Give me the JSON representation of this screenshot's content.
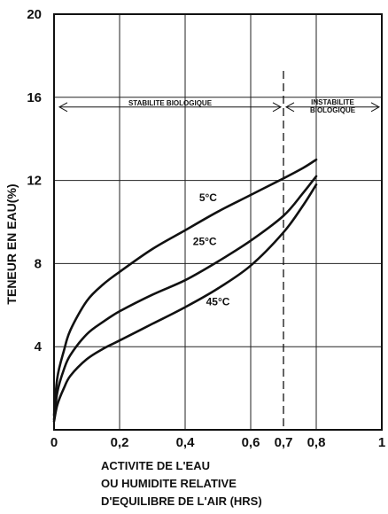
{
  "chart_data": {
    "type": "line",
    "title": "",
    "ylabel": "TENEUR EN EAU(%)",
    "xlabel_lines": [
      "ACTIVITE DE L'EAU",
      "OU HUMIDITE RELATIVE",
      "D'EQUILIBRE DE L'AIR (HRS)"
    ],
    "xlim": [
      0,
      1
    ],
    "ylim": [
      0,
      20
    ],
    "x_ticks": [
      {
        "value": 0,
        "label": "0"
      },
      {
        "value": 0.2,
        "label": "0,2"
      },
      {
        "value": 0.4,
        "label": "0,4"
      },
      {
        "value": 0.6,
        "label": "0,6"
      },
      {
        "value": 0.7,
        "label": "0,7"
      },
      {
        "value": 0.8,
        "label": "0,8"
      },
      {
        "value": 1,
        "label": "1"
      }
    ],
    "y_ticks": [
      {
        "value": 4,
        "label": "4"
      },
      {
        "value": 8,
        "label": "8"
      },
      {
        "value": 12,
        "label": "12"
      },
      {
        "value": 16,
        "label": "16"
      },
      {
        "value": 20,
        "label": "20"
      }
    ],
    "grid": true,
    "series": [
      {
        "name": "5°C",
        "x": [
          0,
          0.01,
          0.03,
          0.05,
          0.1,
          0.15,
          0.2,
          0.3,
          0.4,
          0.5,
          0.6,
          0.7,
          0.76,
          0.8
        ],
        "y": [
          0.7,
          2.5,
          3.8,
          4.8,
          6.2,
          7.0,
          7.6,
          8.7,
          9.6,
          10.5,
          11.3,
          12.1,
          12.6,
          13.0
        ]
      },
      {
        "name": "25°C",
        "x": [
          0,
          0.01,
          0.03,
          0.05,
          0.1,
          0.15,
          0.2,
          0.3,
          0.4,
          0.5,
          0.6,
          0.7,
          0.76,
          0.8
        ],
        "y": [
          0.5,
          1.8,
          2.9,
          3.6,
          4.6,
          5.2,
          5.7,
          6.5,
          7.2,
          8.1,
          9.1,
          10.3,
          11.4,
          12.2
        ]
      },
      {
        "name": "45°C",
        "x": [
          0,
          0.01,
          0.03,
          0.05,
          0.1,
          0.15,
          0.2,
          0.3,
          0.4,
          0.5,
          0.6,
          0.7,
          0.76,
          0.8
        ],
        "y": [
          0.4,
          1.2,
          2.0,
          2.6,
          3.4,
          3.9,
          4.3,
          5.1,
          5.9,
          6.8,
          7.9,
          9.5,
          10.8,
          11.8
        ]
      }
    ],
    "series_label_positions": [
      {
        "text": "5°C",
        "x": 0.47,
        "y": 11.0
      },
      {
        "text": "25°C",
        "x": 0.46,
        "y": 8.9
      },
      {
        "text": "45°C",
        "x": 0.5,
        "y": 6.0
      }
    ],
    "zones": [
      {
        "label_lines": [
          "STABILITE BIOLOGIQUE"
        ],
        "x_from": 0,
        "x_to": 0.7,
        "y": 16
      },
      {
        "label_lines": [
          "INSTABILITE",
          "BIOLOGIQUE"
        ],
        "x_from": 0.7,
        "x_to": 1,
        "y": 16
      }
    ],
    "vertical_marker": {
      "x": 0.7,
      "style": "dashed"
    }
  }
}
